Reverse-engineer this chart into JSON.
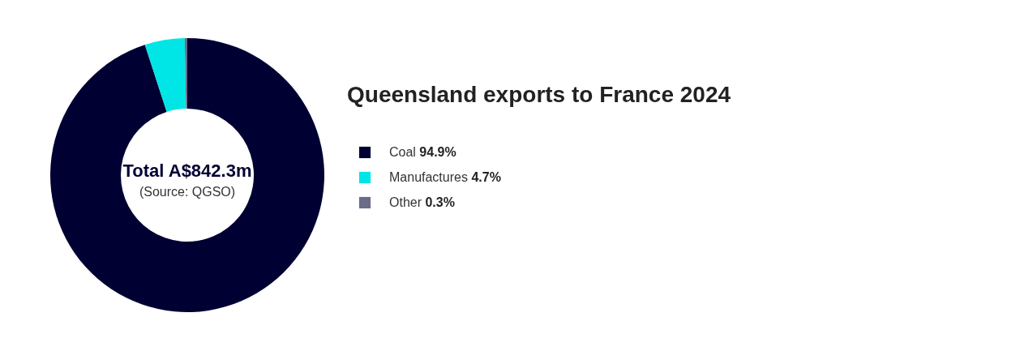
{
  "chart_data": {
    "type": "donut",
    "title": "Queensland exports to France 2024",
    "categories": [
      "Coal",
      "Manufactures",
      "Other"
    ],
    "values": [
      94.9,
      4.7,
      0.3
    ],
    "value_labels": [
      "94.9%",
      "4.7%",
      "0.3%"
    ],
    "colors": [
      "#000033",
      "#00e5e5",
      "#6b6b8a"
    ],
    "legend": "right",
    "annotations": [
      "Total A$842.3m",
      "(Source: QGSO)"
    ]
  }
}
